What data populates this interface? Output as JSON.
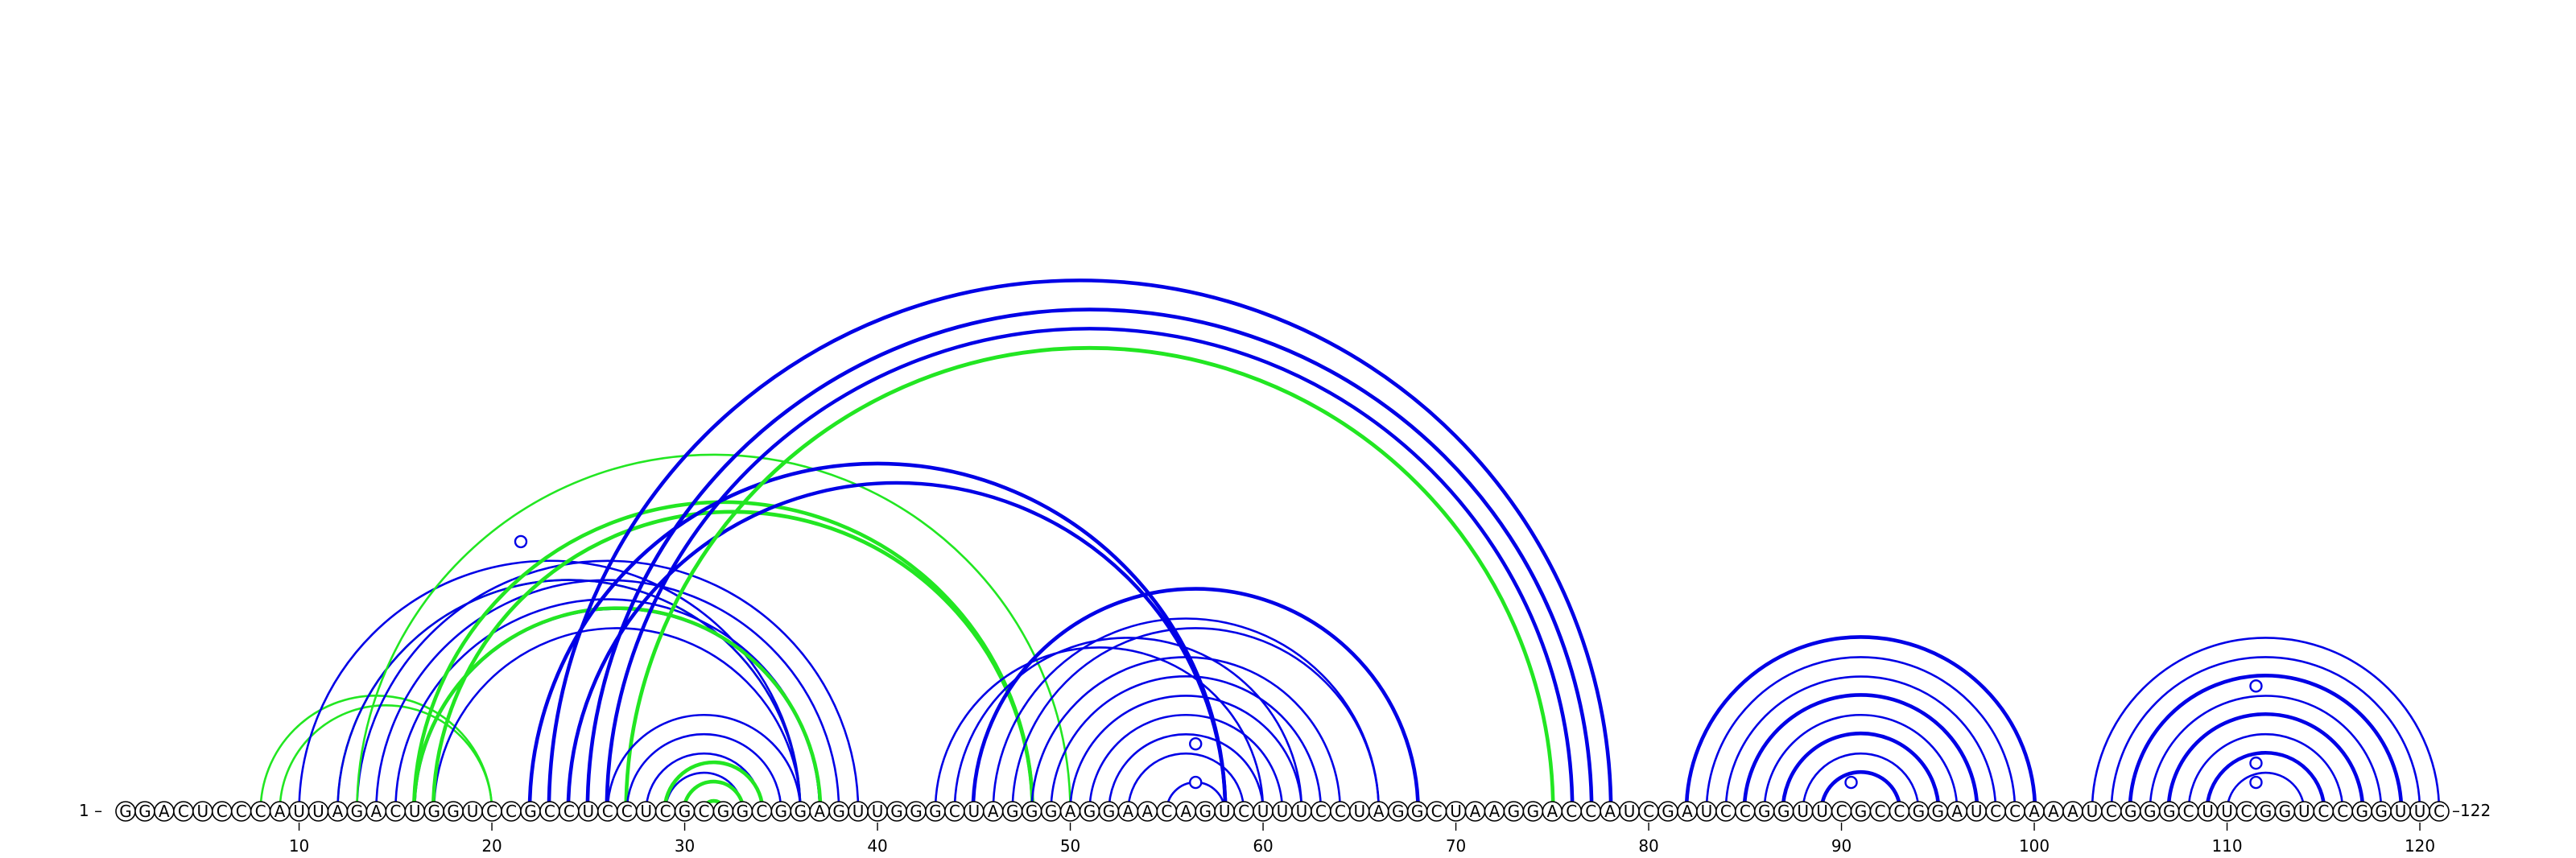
{
  "sequence": "GGACUCCCAUUAGACUGGUCCGCCUCCUCGCGGCGGAGUUGGGCUAGGGAGGAACAGUCUUUCCUAGGCUAAGGACCAUCGAUCCGGUUCGCCGGAUCCAAAUCGGGCUUCGGUCCGGUUC",
  "start_label": "1 –",
  "end_label": "–122",
  "ticks": [
    10,
    20,
    30,
    40,
    50,
    60,
    70,
    80,
    90,
    100,
    110,
    120
  ],
  "colors": {
    "blue": "#0000e6",
    "green": "#22e622",
    "stroke": "#000000",
    "fill": "#ffffff"
  },
  "arcs": [
    {
      "i": 8,
      "j": 20,
      "color": "green",
      "bands": [
        0
      ]
    },
    {
      "i": 9,
      "j": 20,
      "color": "green",
      "bands": [
        0
      ]
    },
    {
      "i": 10,
      "j": 36,
      "color": "blue",
      "bands": [
        0
      ]
    },
    {
      "i": 12,
      "j": 36,
      "color": "green",
      "bands": [
        0
      ]
    },
    {
      "i": 12,
      "j": 36,
      "color": "blue",
      "bands": [
        0
      ]
    },
    {
      "i": 13,
      "j": 39,
      "color": "blue",
      "bands": [
        0
      ]
    },
    {
      "i": 13,
      "j": 50,
      "color": "green",
      "bands": [
        0
      ]
    },
    {
      "i": 14,
      "j": 38,
      "color": "blue",
      "bands": [
        0
      ]
    },
    {
      "i": 15,
      "j": 37,
      "color": "blue",
      "bands": [
        0
      ]
    },
    {
      "i": 16,
      "j": 37,
      "color": "blue",
      "bands": [
        0
      ]
    },
    {
      "i": 16,
      "j": 37,
      "color": "green",
      "bands": [
        0,
        4
      ]
    },
    {
      "i": 17,
      "j": 36,
      "color": "blue",
      "bands": [
        0
      ]
    },
    {
      "i": 16,
      "j": 48,
      "color": "green",
      "bands": [
        0,
        4
      ]
    },
    {
      "i": 17,
      "j": 48,
      "color": "green",
      "bands": [
        0,
        4
      ]
    },
    {
      "i": 22,
      "j": 58,
      "color": "blue",
      "bands": [
        0,
        4
      ]
    },
    {
      "i": 23,
      "j": 78,
      "color": "blue",
      "bands": [
        0,
        4
      ]
    },
    {
      "i": 24,
      "j": 58,
      "color": "blue",
      "bands": [
        0,
        4
      ]
    },
    {
      "i": 25,
      "j": 77,
      "color": "blue",
      "bands": [
        0,
        4
      ]
    },
    {
      "i": 26,
      "j": 76,
      "color": "blue",
      "bands": [
        0,
        4
      ]
    },
    {
      "i": 27,
      "j": 75,
      "color": "green",
      "bands": [
        0,
        4
      ]
    },
    {
      "i": 26,
      "j": 36,
      "color": "blue",
      "bands": [
        0
      ]
    },
    {
      "i": 27,
      "j": 35,
      "color": "blue",
      "bands": [
        0
      ]
    },
    {
      "i": 28,
      "j": 34,
      "color": "blue",
      "bands": [
        0
      ]
    },
    {
      "i": 29,
      "j": 33,
      "color": "blue",
      "bands": [
        0
      ]
    },
    {
      "i": 29,
      "j": 34,
      "color": "green",
      "bands": [
        0,
        4
      ]
    },
    {
      "i": 30,
      "j": 33,
      "color": "green",
      "bands": [
        0,
        4
      ]
    },
    {
      "i": 31,
      "j": 32,
      "color": "green",
      "bands": [
        0,
        4
      ]
    },
    {
      "i": 32,
      "j": 32,
      "color": "blue",
      "bands": [
        0
      ]
    },
    {
      "i": 43,
      "j": 60,
      "color": "blue",
      "bands": [
        0
      ]
    },
    {
      "i": 44,
      "j": 62,
      "color": "blue",
      "bands": [
        0
      ]
    },
    {
      "i": 45,
      "j": 68,
      "color": "blue",
      "bands": [
        0,
        4
      ]
    },
    {
      "i": 46,
      "j": 66,
      "color": "blue",
      "bands": [
        0
      ]
    },
    {
      "i": 47,
      "j": 66,
      "color": "blue",
      "bands": [
        0
      ]
    },
    {
      "i": 48,
      "j": 64,
      "color": "blue",
      "bands": [
        0
      ]
    },
    {
      "i": 49,
      "j": 63,
      "color": "blue",
      "bands": [
        0
      ]
    },
    {
      "i": 50,
      "j": 62,
      "color": "blue",
      "bands": [
        0
      ]
    },
    {
      "i": 51,
      "j": 61,
      "color": "blue",
      "bands": [
        0
      ]
    },
    {
      "i": 52,
      "j": 60,
      "color": "blue",
      "bands": [
        0
      ]
    },
    {
      "i": 53,
      "j": 59,
      "color": "blue",
      "bands": [
        0
      ]
    },
    {
      "i": 55,
      "j": 58,
      "color": "blue",
      "bands": [
        0
      ]
    },
    {
      "i": 82,
      "j": 100,
      "color": "blue",
      "bands": [
        0,
        4
      ]
    },
    {
      "i": 83,
      "j": 99,
      "color": "blue",
      "bands": [
        0
      ]
    },
    {
      "i": 84,
      "j": 98,
      "color": "blue",
      "bands": [
        0
      ]
    },
    {
      "i": 85,
      "j": 97,
      "color": "blue",
      "bands": [
        0,
        4
      ]
    },
    {
      "i": 86,
      "j": 96,
      "color": "blue",
      "bands": [
        0
      ]
    },
    {
      "i": 87,
      "j": 95,
      "color": "blue",
      "bands": [
        0,
        4
      ]
    },
    {
      "i": 88,
      "j": 94,
      "color": "blue",
      "bands": [
        0
      ]
    },
    {
      "i": 89,
      "j": 93,
      "color": "blue",
      "bands": [
        0,
        4
      ]
    },
    {
      "i": 103,
      "j": 121,
      "color": "blue",
      "bands": [
        0
      ]
    },
    {
      "i": 104,
      "j": 120,
      "color": "blue",
      "bands": [
        0
      ]
    },
    {
      "i": 105,
      "j": 119,
      "color": "blue",
      "bands": [
        0,
        4
      ]
    },
    {
      "i": 106,
      "j": 118,
      "color": "blue",
      "bands": [
        0
      ]
    },
    {
      "i": 107,
      "j": 117,
      "color": "blue",
      "bands": [
        0,
        4
      ]
    },
    {
      "i": 108,
      "j": 116,
      "color": "blue",
      "bands": [
        0
      ]
    },
    {
      "i": 109,
      "j": 115,
      "color": "blue",
      "bands": [
        0,
        4
      ]
    },
    {
      "i": 110,
      "j": 114,
      "color": "blue",
      "bands": [
        0
      ]
    }
  ],
  "markers": [
    {
      "x_pos": 21.5,
      "arc_i": 8,
      "arc_j": 36
    },
    {
      "x_pos": 56.5,
      "arc_i": 53,
      "arc_j": 60
    },
    {
      "x_pos": 56.5,
      "arc_i": 55,
      "arc_j": 58
    },
    {
      "x_pos": 90.5,
      "arc_i": 89,
      "arc_j": 92
    },
    {
      "x_pos": 111.5,
      "arc_i": 105,
      "arc_j": 118
    },
    {
      "x_pos": 111.5,
      "arc_i": 109,
      "arc_j": 114
    },
    {
      "x_pos": 111.5,
      "arc_i": 110,
      "arc_j": 113
    }
  ]
}
